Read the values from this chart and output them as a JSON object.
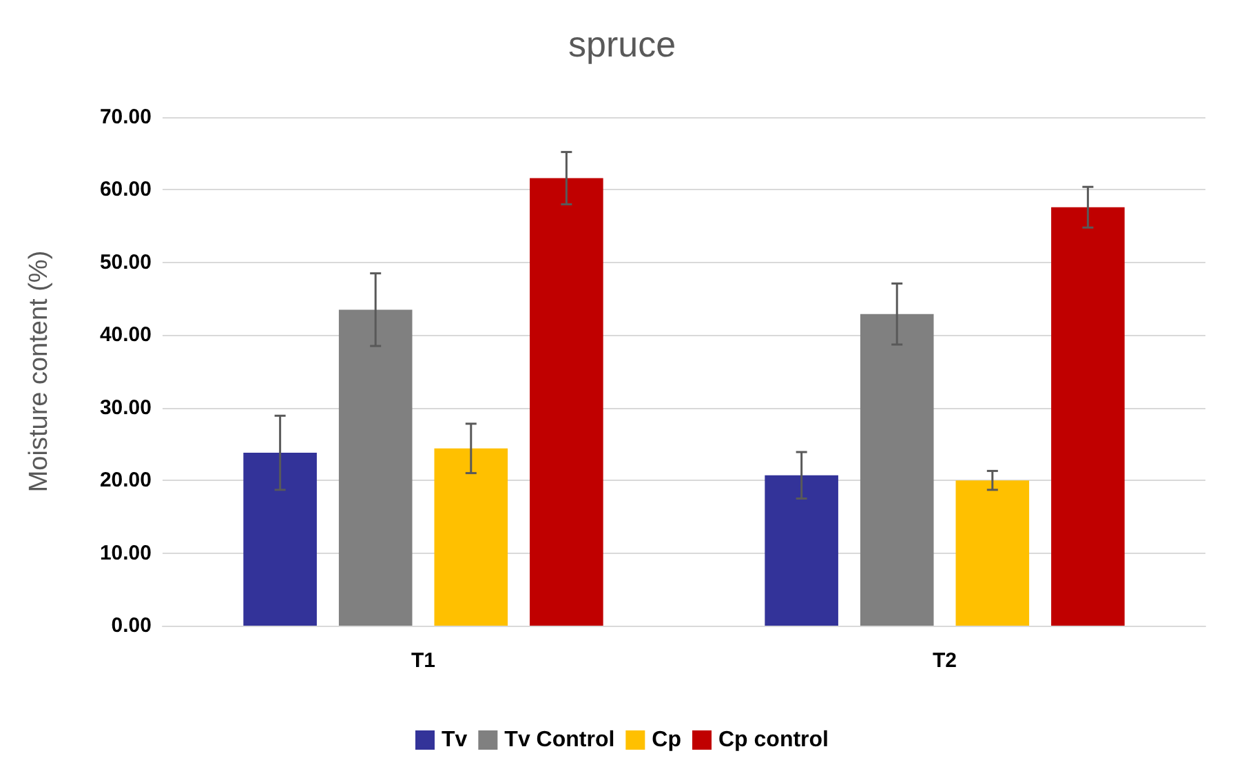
{
  "chart_data": {
    "type": "bar",
    "title": "spruce",
    "ylabel": "Moisture content (%)",
    "categories": [
      "T1",
      "T2"
    ],
    "series": [
      {
        "name": "Tv",
        "color": "#333399",
        "values": [
          23.8,
          20.7
        ],
        "errors": [
          5.1,
          3.2
        ]
      },
      {
        "name": "Tv Control",
        "color": "#808080",
        "values": [
          43.5,
          42.9
        ],
        "errors": [
          5.0,
          4.2
        ]
      },
      {
        "name": "Cp",
        "color": "#ffc000",
        "values": [
          24.4,
          20.0
        ],
        "errors": [
          3.4,
          1.3
        ]
      },
      {
        "name": "Cp control",
        "color": "#c00000",
        "values": [
          61.6,
          57.6
        ],
        "errors": [
          3.6,
          2.8
        ]
      }
    ],
    "ylim": [
      0,
      70
    ],
    "yticks": [
      {
        "value": 0,
        "label": "0.00"
      },
      {
        "value": 10,
        "label": "10.00"
      },
      {
        "value": 20,
        "label": "20.00"
      },
      {
        "value": 30,
        "label": "30.00"
      },
      {
        "value": 40,
        "label": "40.00"
      },
      {
        "value": 50,
        "label": "50.00"
      },
      {
        "value": 60,
        "label": "60.00"
      },
      {
        "value": 70,
        "label": "70.00"
      }
    ],
    "grid": "y",
    "legend": "bottom"
  }
}
